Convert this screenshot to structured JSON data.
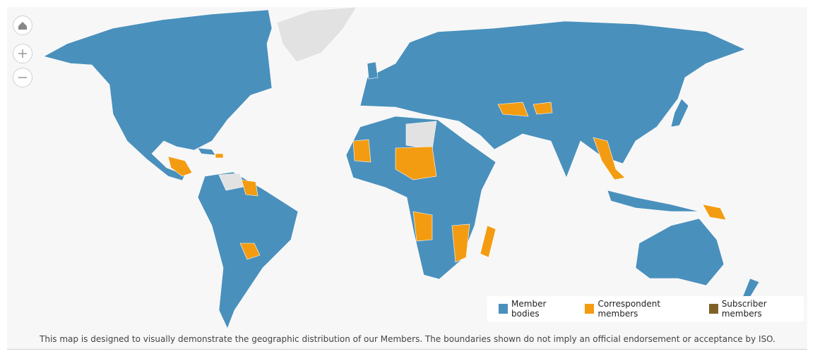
{
  "legend": {
    "items": [
      {
        "name": "Member bodies",
        "color": "#4a90bc"
      },
      {
        "name": "Correspondent members",
        "color": "#f39c12"
      },
      {
        "name": "Subscriber members",
        "color": "#7f6128"
      }
    ]
  },
  "caption": "This map is designed to visually demonstrate the geographic distribution of our Members. The boundaries shown do not imply an official endorsement or acceptance by ISO."
}
